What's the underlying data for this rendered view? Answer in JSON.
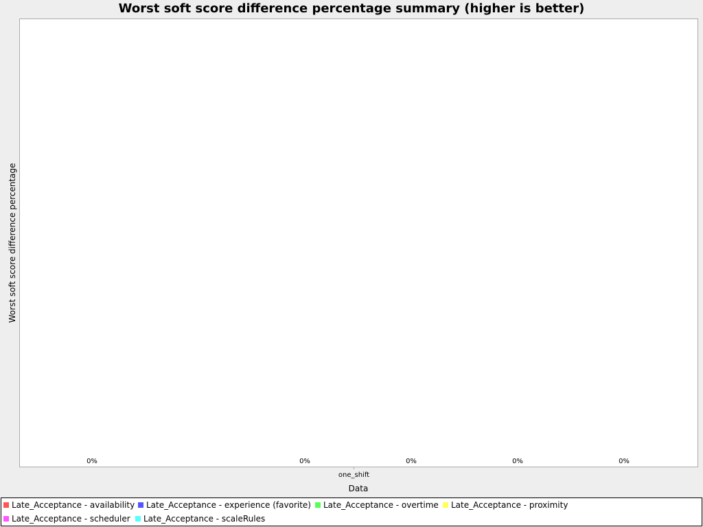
{
  "chart_data": {
    "type": "bar",
    "title": "Worst soft score difference percentage summary (higher is better)",
    "xlabel": "Data",
    "ylabel": "Worst soft score difference percentage",
    "categories": [
      "one_shift"
    ],
    "grid": false,
    "legend_position": "bottom",
    "series": [
      {
        "name": "Late_Acceptance - availability",
        "color": "#ff5555",
        "values": [
          0
        ],
        "data_label": "0%"
      },
      {
        "name": "Late_Acceptance - experience (favorite)",
        "color": "#5555ff",
        "values": [
          0
        ],
        "data_label": "0%"
      },
      {
        "name": "Late_Acceptance - overtime",
        "color": "#55ff55",
        "values": [
          0
        ],
        "data_label": "0%"
      },
      {
        "name": "Late_Acceptance - proximity",
        "color": "#ffff55",
        "values": [
          0
        ],
        "data_label": "0%"
      },
      {
        "name": "Late_Acceptance - scheduler",
        "color": "#ff55ff",
        "values": [
          0
        ],
        "data_label": "0%"
      },
      {
        "name": "Late_Acceptance - scaleRules",
        "color": "#55ffff",
        "values": [
          0
        ],
        "data_label": "0%"
      }
    ]
  }
}
